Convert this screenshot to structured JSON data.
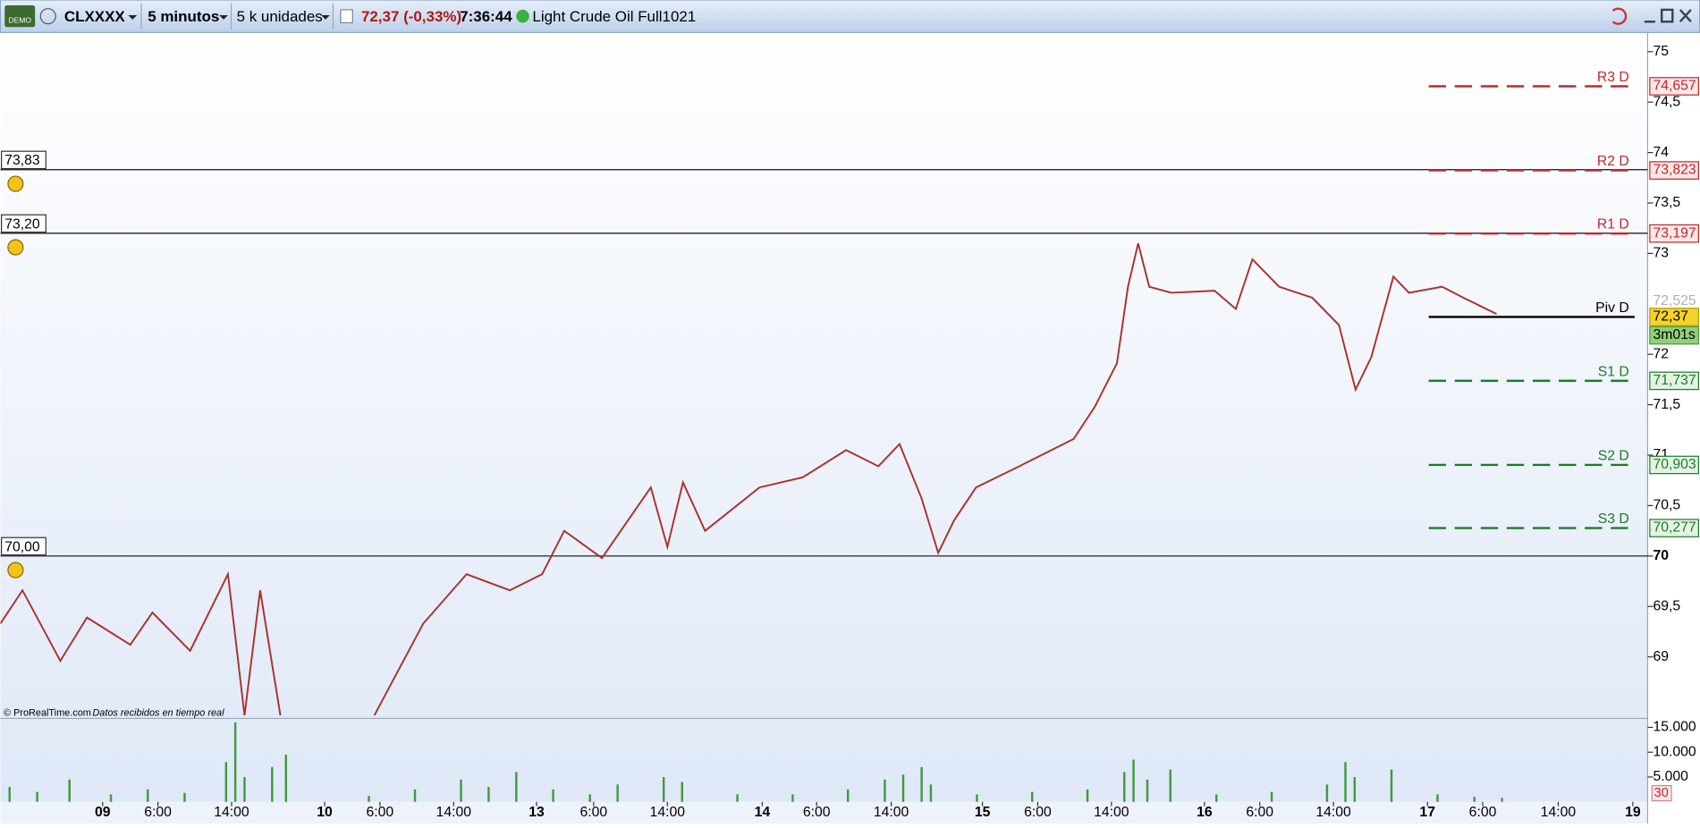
{
  "toolbar": {
    "demo": "DEMO",
    "symbol": "CLXXXX",
    "timeframe": "5 minutos",
    "units": "5 k unidades",
    "change": "72,37 (-0,33%)",
    "time": "7:36:44",
    "instrument": "Light Crude Oil Full1021"
  },
  "chart_data": [
    {
      "type": "line",
      "color": "#a8322d",
      "x": [
        0,
        2.4,
        6.5,
        9.4,
        14.1,
        16.5,
        20.6,
        24.7,
        26.5,
        28.2,
        30.4,
        35,
        40.6,
        45.9,
        50.6,
        55.3,
        58.8,
        61.2,
        65.3,
        70.6,
        72.4,
        74.1,
        76.5,
        82.4,
        87.1,
        91.8,
        95.3,
        97.6,
        100,
        101.8,
        103.5,
        105.9,
        110.6,
        116.5,
        118.8,
        121.2,
        122.4,
        123.5,
        124.7,
        127.1,
        131.8,
        134.1,
        135.9,
        138.8,
        142.4,
        145.3,
        147.1,
        148.8,
        151.2,
        152.9,
        156.5,
        158.8,
        162.4
      ],
      "values": [
        69.33,
        69.66,
        68.96,
        69.39,
        69.12,
        69.44,
        69.06,
        69.82,
        68.42,
        69.66,
        68.42,
        null,
        68.42,
        69.33,
        69.82,
        69.66,
        69.82,
        70.25,
        69.98,
        70.68,
        70.09,
        70.73,
        70.25,
        70.68,
        70.78,
        71.05,
        70.89,
        71.11,
        70.57,
        70.03,
        70.35,
        70.68,
        70.89,
        71.16,
        71.48,
        71.91,
        72.67,
        73.1,
        72.67,
        72.61,
        72.63,
        72.45,
        72.94,
        72.67,
        72.56,
        72.29,
        71.65,
        71.97,
        72.77,
        72.61,
        72.67,
        72.56,
        72.4
      ],
      "xlim": [
        0,
        178.8
      ],
      "xticks": [
        {
          "value": 11.1,
          "label": "09"
        },
        {
          "value": 17.1,
          "label": "6:00"
        },
        {
          "value": 25.1,
          "label": "14:00"
        },
        {
          "value": 35.2,
          "label": "10"
        },
        {
          "value": 41.2,
          "label": "6:00"
        },
        {
          "value": 49.2,
          "label": "14:00"
        },
        {
          "value": 58.2,
          "label": "13"
        },
        {
          "value": 64.4,
          "label": "6:00"
        },
        {
          "value": 72.4,
          "label": "14:00"
        },
        {
          "value": 82.7,
          "label": "14"
        },
        {
          "value": 88.6,
          "label": "6:00"
        },
        {
          "value": 96.7,
          "label": "14:00"
        },
        {
          "value": 106.6,
          "label": "15"
        },
        {
          "value": 112.6,
          "label": "6:00"
        },
        {
          "value": 120.6,
          "label": "14:00"
        },
        {
          "value": 130.7,
          "label": "16"
        },
        {
          "value": 136.7,
          "label": "6:00"
        },
        {
          "value": 144.7,
          "label": "14:00"
        },
        {
          "value": 154.9,
          "label": "17"
        },
        {
          "value": 160.9,
          "label": "6:00"
        },
        {
          "value": 169.1,
          "label": "14:00"
        },
        {
          "value": 177.2,
          "label": "19"
        }
      ],
      "ylim": [
        68.39,
        75.19
      ],
      "yticks": [
        75,
        {
          "value": 74.5,
          "label": "74,5"
        },
        74,
        {
          "value": 73.5,
          "label": "73,5"
        },
        73,
        72,
        {
          "value": 71.5,
          "label": "71,5"
        },
        71,
        {
          "value": 70.5,
          "label": "70,5"
        },
        70,
        {
          "value": 69.5,
          "label": "69,5"
        },
        69
      ],
      "levels": [
        {
          "name": "R3 D",
          "value": 74.657,
          "label": "74,657",
          "color": "#c0282d",
          "style": "dashed"
        },
        {
          "name": "R2 D",
          "value": 73.823,
          "label": "73,823",
          "color": "#c0282d",
          "style": "dashed"
        },
        {
          "name": "R1 D",
          "value": 73.197,
          "label": "73,197",
          "color": "#c0282d",
          "style": "dashed"
        },
        {
          "name": "Piv D",
          "value": 72.37,
          "color": "#000000",
          "style": "solid"
        },
        {
          "name": "S1 D",
          "value": 71.737,
          "label": "71,737",
          "color": "#1f7a2a",
          "style": "dashed"
        },
        {
          "name": "S2 D",
          "value": 70.903,
          "label": "70,903",
          "color": "#1f7a2a",
          "style": "dashed"
        },
        {
          "name": "S3 D",
          "value": 70.277,
          "label": "70,277",
          "color": "#1f7a2a",
          "style": "dashed"
        }
      ],
      "alerts": [
        {
          "value": 73.83,
          "label": "73,83"
        },
        {
          "value": 73.2,
          "label": "73,20"
        },
        {
          "value": 70.0,
          "label": "70,00"
        }
      ],
      "hidden_price": {
        "value": 72.525,
        "label": "72,525"
      },
      "current_price": {
        "value": 72.37,
        "label": "72,37"
      },
      "countdown": "3m01s"
    },
    {
      "type": "bar",
      "color": "#3f9a3f",
      "x": [
        1,
        4,
        7.5,
        12,
        16,
        20,
        24.5,
        25.5,
        26.5,
        29.5,
        31,
        40,
        45,
        50,
        53,
        56,
        60,
        64,
        67,
        72,
        74,
        80,
        86,
        92,
        96,
        98,
        100,
        101,
        106,
        112,
        118,
        122,
        123,
        124.5,
        127,
        132,
        138,
        144,
        146,
        147,
        151,
        156,
        160,
        163
      ],
      "values": [
        3000,
        2000,
        4500,
        1500,
        2500,
        1800,
        8000,
        16000,
        5000,
        7000,
        9500,
        1200,
        2500,
        4500,
        3000,
        6000,
        2500,
        1500,
        3500,
        5000,
        4000,
        1500,
        1500,
        2500,
        4500,
        5500,
        7000,
        3500,
        1500,
        2000,
        2500,
        6000,
        8500,
        4500,
        6500,
        1500,
        2000,
        3500,
        8000,
        5000,
        6500,
        1500,
        1000,
        800
      ],
      "ylim": [
        0,
        16800
      ],
      "yticks": [
        {
          "value": 15000,
          "label": "15.000"
        },
        {
          "value": 10000,
          "label": "10.000"
        },
        {
          "value": 5000,
          "label": "5.000"
        }
      ],
      "indicator": "30"
    }
  ],
  "footer": {
    "copyright": "© ProRealTime.com",
    "note": "Datos recibidos en tiempo real"
  }
}
